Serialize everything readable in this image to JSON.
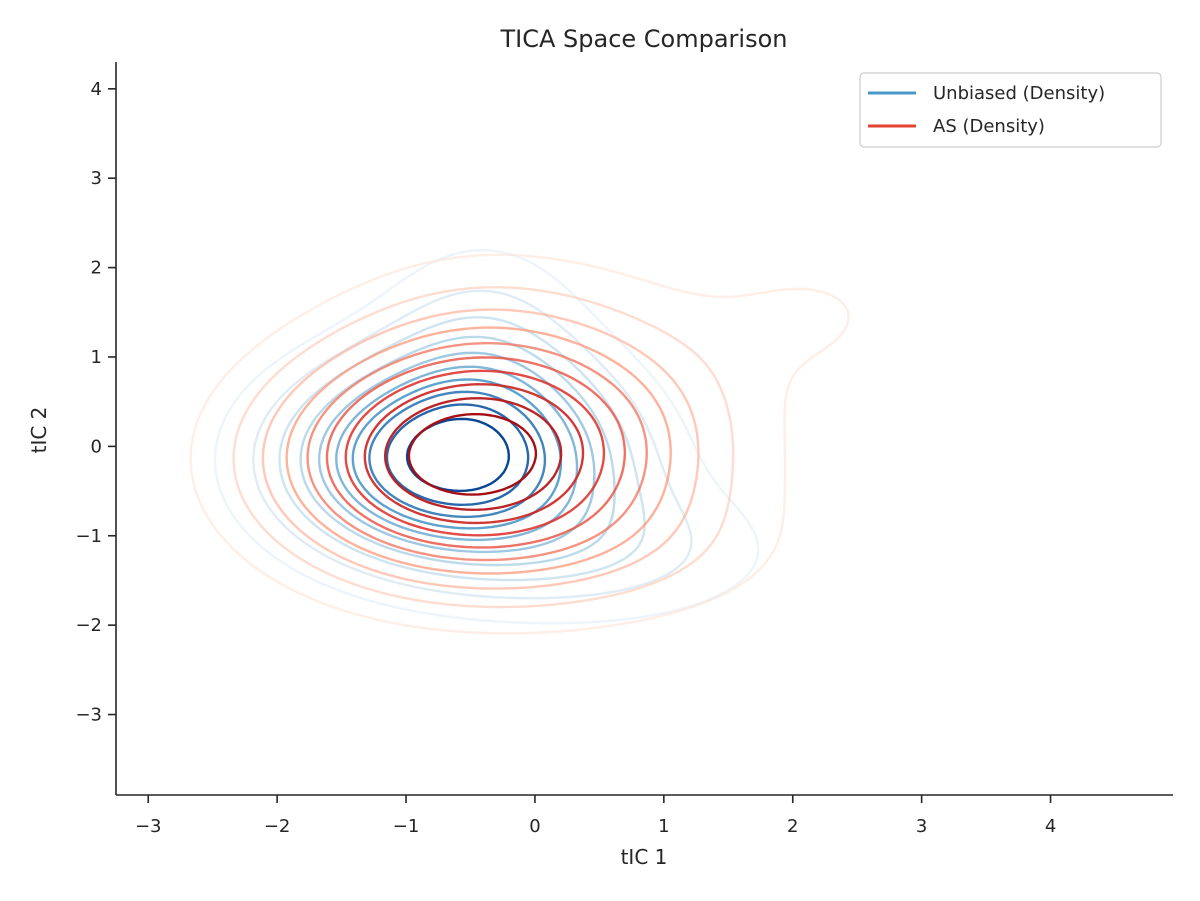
{
  "chart_data": {
    "type": "contour",
    "title": "TICA Space Comparison",
    "xlabel": "tIC 1",
    "ylabel": "tIC 2",
    "xlim": [
      -3.25,
      4.95
    ],
    "ylim": [
      -3.9,
      4.3
    ],
    "xticks": [
      -3,
      -2,
      -1,
      0,
      1,
      2,
      3,
      4
    ],
    "yticks": [
      -3,
      -2,
      -1,
      0,
      1,
      2,
      3,
      4
    ],
    "xtick_labels": [
      "−3",
      "−2",
      "−1",
      "0",
      "1",
      "2",
      "3",
      "4"
    ],
    "ytick_labels": [
      "−3",
      "−2",
      "−1",
      "0",
      "1",
      "2",
      "3",
      "4"
    ],
    "grid": false,
    "legend_position": "top-right",
    "series": [
      {
        "name": "Unbiased (Density)",
        "color": "#4a98c9",
        "colormap": "Blues",
        "peaks": [
          {
            "cx": -0.65,
            "cy": -0.15,
            "sx": 0.85,
            "sy": 0.75,
            "w": 1.0
          },
          {
            "cx": -0.4,
            "cy": 1.0,
            "sx": 0.55,
            "sy": 0.9,
            "w": 0.22
          },
          {
            "cx": 0.6,
            "cy": -1.2,
            "sx": 0.9,
            "sy": 0.55,
            "w": 0.2
          },
          {
            "cx": 2.1,
            "cy": 1.5,
            "sx": 0.35,
            "sy": 0.28,
            "w": 0.08
          }
        ]
      },
      {
        "name": "AS (Density)",
        "color": "#e5422f",
        "colormap": "Reds",
        "peaks": [
          {
            "cx": -0.65,
            "cy": -0.15,
            "sx": 0.95,
            "sy": 0.85,
            "w": 1.0
          },
          {
            "cx": 0.3,
            "cy": 0.3,
            "sx": 1.0,
            "sy": 1.0,
            "w": 0.3
          },
          {
            "cx": 0.7,
            "cy": -1.2,
            "sx": 1.0,
            "sy": 0.6,
            "w": 0.12
          },
          {
            "cx": 2.2,
            "cy": 1.5,
            "sx": 0.55,
            "sy": 0.5,
            "w": 0.1
          },
          {
            "cx": -0.5,
            "cy": 1.3,
            "sx": 0.7,
            "sy": 0.7,
            "w": 0.08
          }
        ]
      }
    ]
  }
}
